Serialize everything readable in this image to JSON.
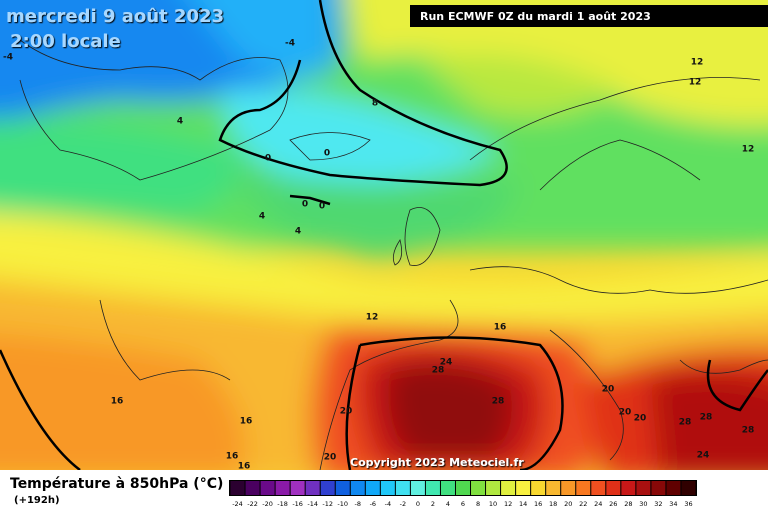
{
  "header": {
    "date": "mercredi 9 août 2023",
    "time": "2:00 locale",
    "run": "Run ECMWF 0Z du mardi 1 août 2023",
    "copyright": "Copyright 2023 Meteociel.fr"
  },
  "legend": {
    "title": "Température à 850hPa (°C)",
    "lead": "(+192h)",
    "scale": {
      "values": [
        -24,
        -22,
        -20,
        -18,
        -16,
        -14,
        -12,
        -10,
        -8,
        -6,
        -4,
        -2,
        0,
        2,
        4,
        6,
        8,
        10,
        12,
        14,
        16,
        18,
        20,
        22,
        24,
        26,
        28,
        30,
        32,
        34,
        36
      ],
      "colors": [
        "#2b0030",
        "#4a0060",
        "#6a0a8a",
        "#8a1aa8",
        "#a030c0",
        "#7030c0",
        "#3040d0",
        "#1060e0",
        "#1088f0",
        "#10a8f8",
        "#20c8f8",
        "#40e0f0",
        "#60f0e0",
        "#40e8b0",
        "#40e080",
        "#50d850",
        "#80e040",
        "#b0e840",
        "#e0f040",
        "#f8f040",
        "#f8d830",
        "#f8b830",
        "#f89828",
        "#f87820",
        "#f05020",
        "#e03018",
        "#c81818",
        "#a81010",
        "#880808",
        "#600000",
        "#300000"
      ]
    }
  },
  "map": {
    "contour_labels": [
      4,
      8,
      0,
      0,
      0,
      0,
      4,
      4,
      12,
      16,
      16,
      20,
      24,
      28,
      28,
      20,
      20,
      20,
      28,
      28,
      28,
      24,
      16,
      16,
      16,
      20,
      12,
      12,
      12,
      -4,
      -4,
      4
    ]
  }
}
